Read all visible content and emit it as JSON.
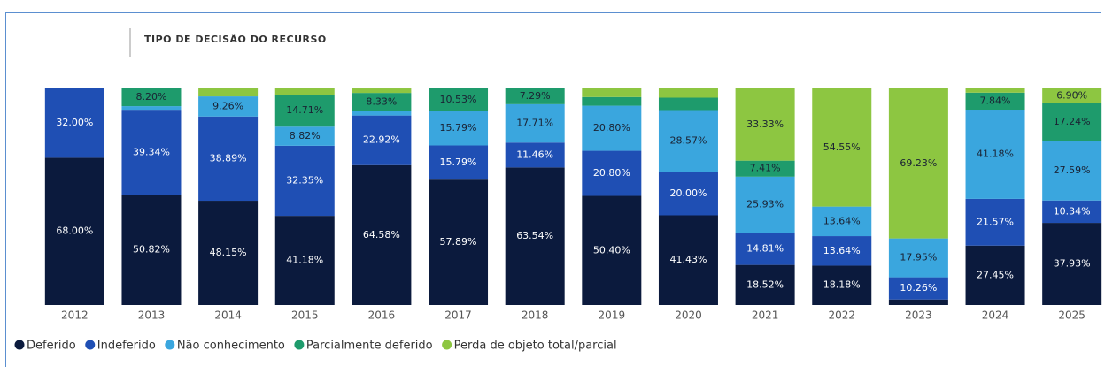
{
  "chart_data": {
    "type": "bar",
    "stacked": true,
    "title": "TIPO DE DECISÃO DO RECURSO",
    "categories": [
      "2012",
      "2013",
      "2014",
      "2015",
      "2016",
      "2017",
      "2018",
      "2019",
      "2020",
      "2021",
      "2022",
      "2023",
      "2024",
      "2025"
    ],
    "ylim": [
      0,
      100
    ],
    "legend": "bottom-left",
    "series": [
      {
        "name": "Deferido",
        "color": "#0b1a3d",
        "values": [
          68.0,
          50.82,
          48.15,
          41.18,
          64.58,
          57.89,
          63.54,
          50.4,
          41.43,
          18.52,
          18.18,
          2.56,
          27.45,
          37.93
        ],
        "value_labels": [
          "68.00%",
          "50.82%",
          "48.15%",
          "41.18%",
          "64.58%",
          "57.89%",
          "63.54%",
          "50.40%",
          "41.43%",
          "18.52%",
          "18.18%",
          null,
          "27.45%",
          "37.93%"
        ]
      },
      {
        "name": "Indeferido",
        "color": "#1f4fb4",
        "values": [
          32.0,
          39.34,
          38.89,
          32.35,
          22.92,
          15.79,
          11.46,
          20.8,
          20.0,
          14.81,
          13.64,
          10.26,
          21.57,
          10.34
        ],
        "value_labels": [
          "32.00%",
          "39.34%",
          "38.89%",
          "32.35%",
          "22.92%",
          "15.79%",
          "11.46%",
          "20.80%",
          "20.00%",
          "14.81%",
          "13.64%",
          "10.26%",
          "21.57%",
          "10.34%"
        ]
      },
      {
        "name": "Não conhecimento",
        "color": "#3aa6de",
        "values": [
          0,
          1.64,
          9.26,
          8.82,
          2.08,
          15.79,
          17.71,
          20.8,
          28.57,
          25.93,
          13.64,
          17.95,
          41.18,
          27.59
        ],
        "value_labels": [
          null,
          null,
          "9.26%",
          "8.82%",
          null,
          "15.79%",
          "17.71%",
          "20.80%",
          "28.57%",
          "25.93%",
          "13.64%",
          "17.95%",
          "41.18%",
          "27.59%"
        ]
      },
      {
        "name": "Parcialmente deferido",
        "color": "#1e9b6c",
        "values": [
          0,
          8.2,
          0,
          14.71,
          8.33,
          10.53,
          7.29,
          4.0,
          5.71,
          7.41,
          0,
          0,
          7.84,
          17.24
        ],
        "value_labels": [
          null,
          "8.20%",
          null,
          "14.71%",
          "8.33%",
          "10.53%",
          "7.29%",
          null,
          null,
          "7.41%",
          null,
          null,
          "7.84%",
          "17.24%"
        ]
      },
      {
        "name": "Perda de objeto total/parcial",
        "color": "#8dc641",
        "values": [
          0,
          0,
          3.7,
          2.94,
          2.08,
          0,
          0,
          4.0,
          4.29,
          33.33,
          54.55,
          69.23,
          1.96,
          6.9
        ],
        "value_labels": [
          null,
          null,
          null,
          null,
          null,
          null,
          null,
          null,
          null,
          "33.33%",
          "54.55%",
          "69.23%",
          null,
          "6.90%"
        ]
      }
    ]
  }
}
